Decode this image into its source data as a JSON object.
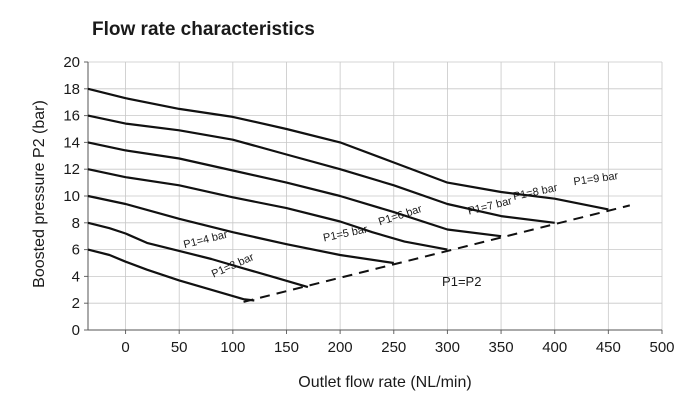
{
  "chart_data": {
    "type": "line",
    "title": "Flow rate characteristics",
    "xlabel": "Outlet flow rate (NL/min)",
    "ylabel": "Boosted pressure P2 (bar)",
    "xlim": [
      -35,
      500
    ],
    "ylim": [
      0,
      20
    ],
    "xticks": [
      0,
      50,
      100,
      150,
      200,
      250,
      300,
      350,
      400,
      450,
      500
    ],
    "yticks": [
      0,
      2,
      4,
      6,
      8,
      10,
      12,
      14,
      16,
      18,
      20
    ],
    "grid": true,
    "series": [
      {
        "name": "P1=3 bar",
        "x": [
          -35,
          -15,
          0,
          20,
          50,
          80,
          110,
          120
        ],
        "y": [
          6,
          5.6,
          5.1,
          4.5,
          3.7,
          3.0,
          2.3,
          2.2
        ]
      },
      {
        "name": "P1=4 bar",
        "x": [
          -35,
          -15,
          0,
          20,
          50,
          80,
          110,
          140,
          170
        ],
        "y": [
          8,
          7.6,
          7.2,
          6.5,
          5.9,
          5.3,
          4.6,
          3.9,
          3.2
        ]
      },
      {
        "name": "P1=5 bar",
        "x": [
          -35,
          0,
          50,
          100,
          150,
          200,
          250
        ],
        "y": [
          10,
          9.4,
          8.3,
          7.3,
          6.4,
          5.6,
          5.0
        ]
      },
      {
        "name": "P1=6 bar",
        "x": [
          -35,
          0,
          50,
          100,
          150,
          200,
          230,
          260,
          300
        ],
        "y": [
          12,
          11.4,
          10.8,
          9.9,
          9.1,
          8.1,
          7.3,
          6.6,
          6.0
        ]
      },
      {
        "name": "P1=7 bar",
        "x": [
          -35,
          0,
          50,
          100,
          150,
          200,
          250,
          300,
          350
        ],
        "y": [
          14,
          13.4,
          12.8,
          11.9,
          11.0,
          10.0,
          8.8,
          7.5,
          7.0
        ]
      },
      {
        "name": "P1=8 bar",
        "x": [
          -35,
          0,
          50,
          100,
          150,
          200,
          250,
          300,
          350,
          400
        ],
        "y": [
          16,
          15.4,
          14.9,
          14.2,
          13.1,
          12.0,
          10.8,
          9.4,
          8.5,
          8.0
        ]
      },
      {
        "name": "P1=9 bar",
        "x": [
          -35,
          0,
          50,
          100,
          150,
          200,
          250,
          300,
          350,
          400,
          450
        ],
        "y": [
          18,
          17.3,
          16.5,
          15.9,
          15.0,
          14.0,
          12.5,
          11.0,
          10.3,
          9.8,
          9.0
        ]
      }
    ],
    "reference_line": {
      "name": "P1=P2",
      "x": [
        110,
        470
      ],
      "y": [
        2.1,
        9.3
      ],
      "style": "dashed"
    }
  }
}
